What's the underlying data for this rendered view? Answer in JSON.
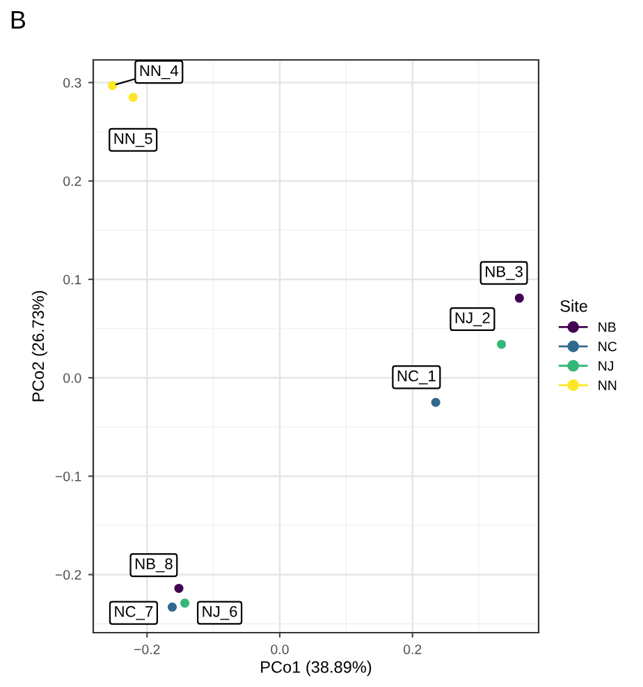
{
  "chart_data": {
    "type": "scatter",
    "title": "B",
    "xlabel": "PCo1 (38.89%)",
    "ylabel": "PCo2 (26.73%)",
    "legend_title": "Site",
    "legend": "right",
    "grid": true,
    "marker": "circle",
    "xlim": [
      -0.281,
      0.39
    ],
    "ylim": [
      -0.259,
      0.323
    ],
    "xticks": [
      {
        "value": -0.2,
        "label": "−0.2"
      },
      {
        "value": 0.0,
        "label": "0.0"
      },
      {
        "value": 0.2,
        "label": "0.2"
      }
    ],
    "yticks": [
      {
        "value": -0.2,
        "label": "−0.2"
      },
      {
        "value": -0.1,
        "label": "−0.1"
      },
      {
        "value": 0.0,
        "label": "0.0"
      },
      {
        "value": 0.1,
        "label": "0.1"
      },
      {
        "value": 0.2,
        "label": "0.2"
      },
      {
        "value": 0.3,
        "label": "0.3"
      }
    ],
    "series": [
      {
        "name": "NB",
        "color": "#440154",
        "x": [
          0.361,
          -0.152
        ],
        "values": [
          0.081,
          -0.214
        ]
      },
      {
        "name": "NC",
        "color": "#31688e",
        "x": [
          0.235,
          -0.162
        ],
        "values": [
          -0.025,
          -0.233
        ]
      },
      {
        "name": "NJ",
        "color": "#35b779",
        "x": [
          0.334,
          -0.143
        ],
        "values": [
          0.034,
          -0.229
        ]
      },
      {
        "name": "NN",
        "color": "#fde725",
        "x": [
          -0.252,
          -0.221
        ],
        "values": [
          0.297,
          0.285
        ]
      }
    ],
    "annotations": [
      {
        "text": "NN_4",
        "x": -0.252,
        "y": 0.297
      },
      {
        "text": "NN_5",
        "x": -0.221,
        "y": 0.285
      },
      {
        "text": "NB_3",
        "x": 0.361,
        "y": 0.081
      },
      {
        "text": "NJ_2",
        "x": 0.334,
        "y": 0.034
      },
      {
        "text": "NC_1",
        "x": 0.235,
        "y": -0.025
      },
      {
        "text": "NB_8",
        "x": -0.152,
        "y": -0.214
      },
      {
        "text": "NC_7",
        "x": -0.162,
        "y": -0.233
      },
      {
        "text": "NJ_6",
        "x": -0.143,
        "y": -0.229
      }
    ]
  }
}
